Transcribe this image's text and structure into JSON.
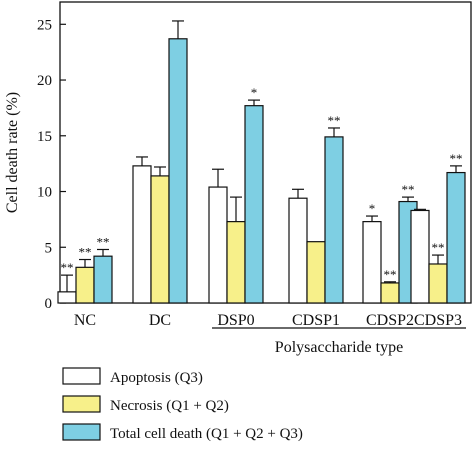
{
  "chart_data": {
    "type": "bar",
    "title": "",
    "ylabel": "Cell death rate (%)",
    "xlabel": "",
    "group_label": "Polysaccharide type",
    "ylim": [
      0,
      27
    ],
    "yticks": [
      0,
      5,
      10,
      15,
      20,
      25
    ],
    "grid": false,
    "legend_position": "bottom",
    "categories": [
      "NC",
      "DC",
      "DSP0",
      "CDSP1",
      "CDSP2",
      "CDSP3"
    ],
    "series": [
      {
        "name": "Apoptosis (Q3)",
        "color": "#ffffff",
        "values": [
          1.0,
          12.3,
          10.4,
          9.4,
          7.3,
          8.3
        ],
        "errors": [
          1.5,
          0.8,
          1.6,
          0.8,
          0.5,
          0.1
        ],
        "sig": [
          "**",
          "",
          "",
          "",
          "*",
          ""
        ]
      },
      {
        "name": "Necrosis (Q1 + Q2)",
        "color": "#f7f08a",
        "values": [
          3.2,
          11.4,
          7.3,
          5.5,
          1.8,
          3.5
        ],
        "errors": [
          0.7,
          0.8,
          2.2,
          0.0,
          0.1,
          0.8
        ],
        "sig": [
          "**",
          "",
          "",
          "",
          "**",
          "**"
        ]
      },
      {
        "name": "Total cell death (Q1 + Q2 + Q3)",
        "color": "#7ecfe3",
        "values": [
          4.2,
          23.7,
          17.7,
          14.9,
          9.1,
          11.7
        ],
        "errors": [
          0.6,
          1.6,
          0.5,
          0.8,
          0.4,
          0.6
        ],
        "sig": [
          "**",
          "",
          "*",
          "**",
          "**",
          "**"
        ]
      }
    ]
  }
}
